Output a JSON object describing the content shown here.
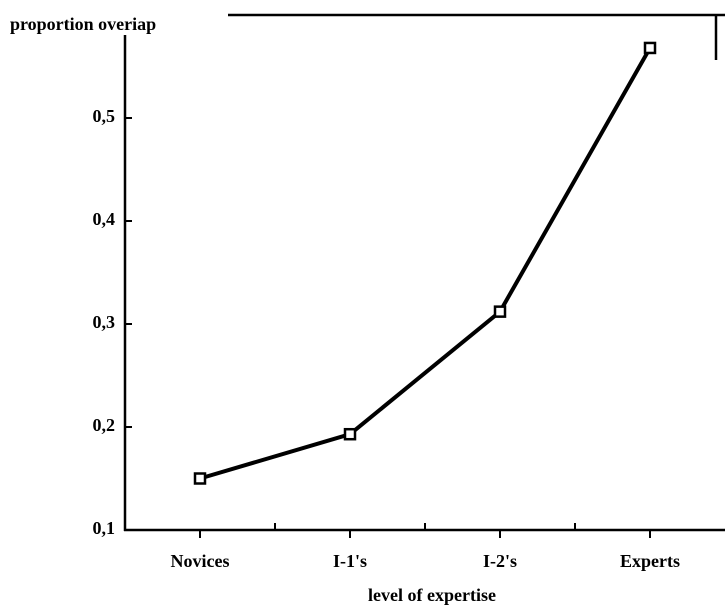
{
  "chart_data": {
    "type": "line",
    "y_label": "proportion overiap",
    "x_label": "level of expertise",
    "categories": [
      "Novices",
      "I-1's",
      "I-2's",
      "Experts"
    ],
    "series": [
      {
        "color": "#000000",
        "values": [
          0.15,
          0.193,
          0.312,
          0.568
        ]
      }
    ],
    "ylim": [
      0.1,
      0.6
    ],
    "yticks": [
      {
        "value": 0.1,
        "label": "0,1"
      },
      {
        "value": 0.2,
        "label": "0,2"
      },
      {
        "value": 0.3,
        "label": "0,3"
      },
      {
        "value": 0.4,
        "label": "0,4"
      },
      {
        "value": 0.5,
        "label": "0,5"
      }
    ]
  }
}
